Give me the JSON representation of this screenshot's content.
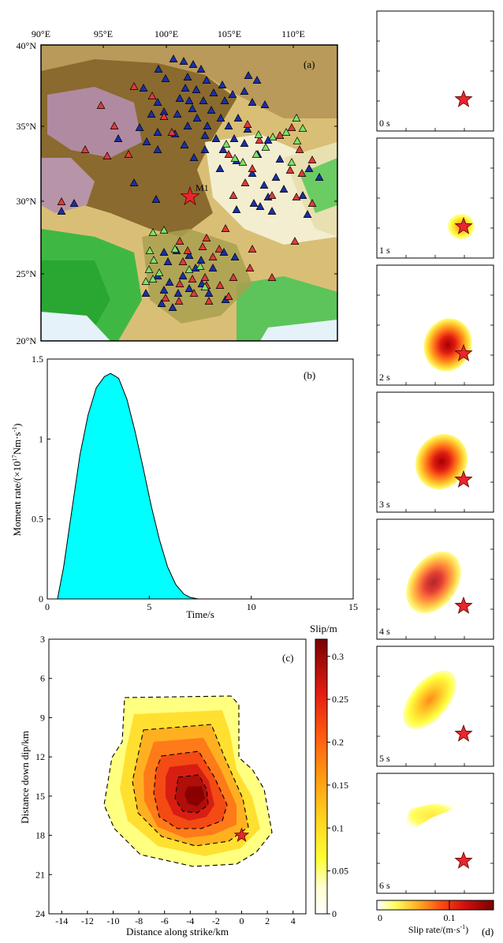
{
  "panel_a": {
    "label": "(a)",
    "lon_ticks": [
      "90°E",
      "95°E",
      "100°E",
      "105°E",
      "110°E"
    ],
    "lat_ticks": [
      "40°N",
      "35°N",
      "30°N",
      "25°N",
      "20°N"
    ],
    "epicenter_label": "M1",
    "colors": {
      "red": "#e03a3a",
      "blue": "#1a2fa8",
      "green": "#7fe06a",
      "star": "#e8262c"
    }
  },
  "chart_data": [
    {
      "type": "area",
      "panel": "(b)",
      "xlabel": "Time/s",
      "ylabel_prefix": "Moment rate/(×10",
      "ylabel_exp": "17",
      "ylabel_suffix": "Nm·s",
      "ylabel_exp2": "-1",
      "ylabel_close": ")",
      "xlim": [
        0,
        15
      ],
      "ylim": [
        0,
        1.5
      ],
      "xticks": [
        "0",
        "5",
        "10",
        "15"
      ],
      "yticks": [
        "0",
        "0.5",
        "1",
        "1.5"
      ],
      "x": [
        0.5,
        0.8,
        1.2,
        1.6,
        2.0,
        2.4,
        2.8,
        3.1,
        3.5,
        3.9,
        4.3,
        4.7,
        5.1,
        5.5,
        5.9,
        6.3,
        6.7,
        7.0,
        7.4,
        7.8
      ],
      "values": [
        0.0,
        0.2,
        0.55,
        0.9,
        1.15,
        1.32,
        1.39,
        1.41,
        1.38,
        1.25,
        1.05,
        0.82,
        0.58,
        0.37,
        0.2,
        0.09,
        0.03,
        0.01,
        0.0,
        0.0
      ],
      "fill": "#00ffff"
    },
    {
      "type": "heatmap",
      "panel": "(c)",
      "xlabel": "Distance along strike/km",
      "ylabel": "Distance down dip/km",
      "xticks": [
        "-14",
        "-12",
        "-10",
        "-8",
        "-6",
        "-4",
        "-2",
        "0",
        "2",
        "4"
      ],
      "yticks": [
        "3",
        "6",
        "9",
        "12",
        "15",
        "18",
        "21",
        "24"
      ],
      "xlim": [
        -15,
        5
      ],
      "ylim": [
        3,
        24
      ],
      "peak": {
        "strike_km": -3.5,
        "dip_km": 15.0,
        "slip_m": 0.32
      },
      "hypocenter": {
        "strike_km": 0,
        "dip_km": 18
      },
      "colorbar_title": "Slip/m",
      "colorbar_ticks": [
        "0.3",
        "0.25",
        "0.2",
        "0.15",
        "0.1",
        "0.05",
        "0"
      ],
      "colorbar_range": [
        0,
        0.32
      ]
    },
    {
      "type": "heatmap",
      "panel": "(d)",
      "snapshot_labels": [
        "0 s",
        "1 s",
        "2 s",
        "3 s",
        "4 s",
        "5 s",
        "6 s"
      ],
      "colorbar_label": "Slip rate/(m·s",
      "colorbar_exp": "-1",
      "colorbar_close": ")",
      "colorbar_ticks": [
        "0",
        "0.1"
      ],
      "colorbar_range": [
        0,
        0.16
      ]
    }
  ]
}
